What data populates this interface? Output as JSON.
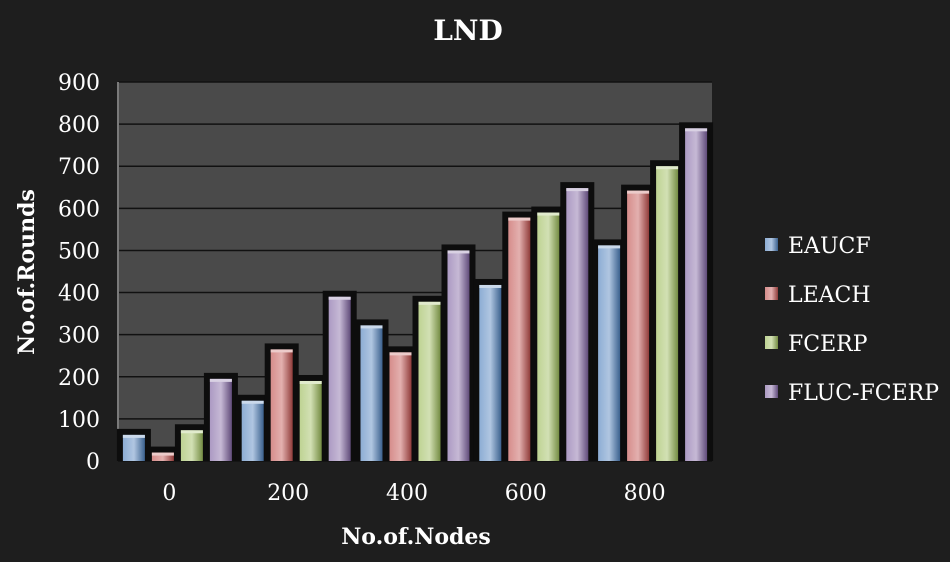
{
  "chart_data": {
    "type": "bar",
    "title": "LND",
    "xlabel": "No.of.Nodes",
    "ylabel": "No.of.Rounds",
    "categories": [
      "0",
      "200",
      "400",
      "600",
      "800"
    ],
    "ylim": [
      0,
      900
    ],
    "yticks": [
      0,
      100,
      200,
      300,
      400,
      500,
      600,
      700,
      800,
      900
    ],
    "grid": true,
    "legend_position": "right",
    "series": [
      {
        "name": "EAUCF",
        "color": "#4f81bd",
        "values": [
          62,
          143,
          322,
          418,
          512
        ]
      },
      {
        "name": "LEACH",
        "color": "#c0504d",
        "values": [
          20,
          265,
          258,
          578,
          642
        ]
      },
      {
        "name": "FCERP",
        "color": "#9bbb59",
        "values": [
          73,
          190,
          378,
          590,
          700
        ]
      },
      {
        "name": "FLUC-FCERP",
        "color": "#8064a2",
        "values": [
          195,
          390,
          500,
          648,
          790
        ]
      }
    ]
  }
}
